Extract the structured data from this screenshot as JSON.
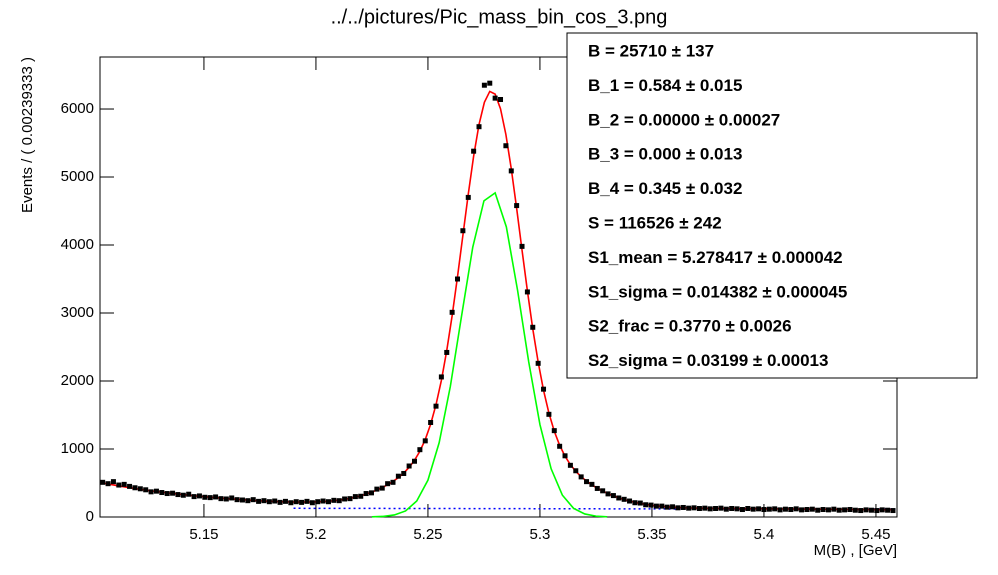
{
  "chart_data": {
    "type": "line",
    "title": "../../pictures/Pic_mass_bin_cos_3.png",
    "xlabel": "M(B) , [GeV]",
    "ylabel": "Events / ( 0.00239333 )",
    "xlim": [
      5.1036,
      5.4594
    ],
    "ylim": [
      0,
      6765
    ],
    "xticks": [
      5.15,
      5.2,
      5.25,
      5.3,
      5.35,
      5.4,
      5.45
    ],
    "yticks": [
      0,
      1000,
      2000,
      3000,
      4000,
      5000,
      6000
    ],
    "x": [
      5.1048,
      5.1072,
      5.1096,
      5.112,
      5.1144,
      5.1168,
      5.1192,
      5.1216,
      5.124,
      5.1264,
      5.1288,
      5.1312,
      5.1336,
      5.136,
      5.1384,
      5.1408,
      5.1432,
      5.1456,
      5.148,
      5.1504,
      5.1528,
      5.1552,
      5.1576,
      5.16,
      5.1624,
      5.1648,
      5.1672,
      5.1696,
      5.172,
      5.1744,
      5.1768,
      5.1792,
      5.1816,
      5.184,
      5.1864,
      5.1888,
      5.1912,
      5.1936,
      5.196,
      5.1984,
      5.2008,
      5.2032,
      5.2056,
      5.208,
      5.2104,
      5.2128,
      5.2152,
      5.2176,
      5.22,
      5.2224,
      5.2248,
      5.2272,
      5.2296,
      5.232,
      5.2344,
      5.2368,
      5.2392,
      5.2416,
      5.244,
      5.2464,
      5.2488,
      5.2512,
      5.2536,
      5.256,
      5.2584,
      5.2608,
      5.2632,
      5.2656,
      5.268,
      5.2704,
      5.2728,
      5.2752,
      5.2776,
      5.28,
      5.2824,
      5.2848,
      5.2872,
      5.2896,
      5.292,
      5.2944,
      5.2968,
      5.2992,
      5.3016,
      5.304,
      5.3064,
      5.3088,
      5.3112,
      5.3136,
      5.316,
      5.3184,
      5.3208,
      5.3232,
      5.3256,
      5.328,
      5.3304,
      5.3328,
      5.3352,
      5.3376,
      5.34,
      5.3424,
      5.3448,
      5.3472,
      5.3496,
      5.352,
      5.3544,
      5.3568,
      5.3592,
      5.3616,
      5.364,
      5.3664,
      5.3688,
      5.3712,
      5.3736,
      5.376,
      5.3784,
      5.3808,
      5.3832,
      5.3856,
      5.388,
      5.3904,
      5.3928,
      5.3952,
      5.3976,
      5.4,
      5.4024,
      5.4048,
      5.4072,
      5.4096,
      5.412,
      5.4144,
      5.4168,
      5.4192,
      5.4216,
      5.424,
      5.4264,
      5.4288,
      5.4312,
      5.4336,
      5.436,
      5.4384,
      5.4408,
      5.4432,
      5.4456,
      5.448,
      5.4504,
      5.4528,
      5.4552,
      5.4576
    ],
    "series": [
      {
        "color": "#0000ff",
        "dash": "dotted",
        "x": [
          5.19,
          5.25,
          5.3,
          5.35,
          5.4,
          5.459
        ],
        "values": [
          128,
          125,
          122,
          119,
          116,
          113
        ]
      },
      {
        "color": "#00ff00",
        "x": [
          5.225,
          5.23,
          5.235,
          5.24,
          5.245,
          5.25,
          5.255,
          5.26,
          5.265,
          5.27,
          5.275,
          5.28,
          5.285,
          5.29,
          5.295,
          5.3,
          5.305,
          5.31,
          5.315,
          5.32,
          5.325,
          5.33
        ],
        "values": [
          2,
          9,
          30,
          89,
          235,
          542,
          1092,
          1921,
          2955,
          3966,
          4650,
          4767,
          4267,
          3336,
          2279,
          1360,
          709,
          322,
          128,
          45,
          13,
          3
        ]
      },
      {
        "color": "#ff0000",
        "values": [
          500,
          485,
          471,
          457,
          444,
          431,
          419,
          407,
          396,
          385,
          375,
          365,
          355,
          346,
          337,
          329,
          320,
          312,
          305,
          298,
          291,
          284,
          278,
          271,
          265,
          260,
          254,
          249,
          244,
          239,
          235,
          232,
          228,
          225,
          223,
          221,
          219,
          219,
          219,
          220,
          223,
          227,
          232,
          239,
          249,
          260,
          275,
          292,
          312,
          336,
          364,
          397,
          433,
          475,
          523,
          579,
          647,
          730,
          834,
          967,
          1139,
          1364,
          1651,
          2009,
          2448,
          2960,
          3534,
          4141,
          4746,
          5307,
          5772,
          6099,
          6259,
          6219,
          6003,
          5625,
          5122,
          4540,
          3926,
          3325,
          2767,
          2279,
          1865,
          1528,
          1261,
          1055,
          893,
          770,
          671,
          593,
          527,
          472,
          423,
          381,
          343,
          310,
          281,
          256,
          234,
          215,
          199,
          186,
          173,
          164,
          156,
          150,
          144,
          140,
          136,
          133,
          131,
          129,
          127,
          126,
          126,
          125,
          125,
          124,
          124,
          123,
          123,
          122,
          122,
          121,
          120,
          120,
          119,
          119,
          118,
          117,
          117,
          116,
          116,
          115,
          114,
          114,
          113,
          113,
          112,
          111,
          111,
          110,
          110,
          109,
          108,
          108,
          107,
          107
        ]
      },
      {
        "color": "#000000",
        "marker": "square",
        "values": [
          510,
          490,
          520,
          470,
          480,
          450,
          430,
          415,
          400,
          370,
          380,
          360,
          345,
          350,
          330,
          320,
          335,
          300,
          310,
          290,
          285,
          295,
          270,
          265,
          280,
          255,
          250,
          240,
          255,
          230,
          240,
          225,
          235,
          215,
          230,
          210,
          225,
          215,
          230,
          210,
          225,
          235,
          225,
          245,
          240,
          265,
          270,
          300,
          305,
          345,
          355,
          410,
          425,
          490,
          510,
          600,
          640,
          750,
          820,
          990,
          1120,
          1390,
          1630,
          2060,
          2420,
          3010,
          3500,
          4210,
          4700,
          5380,
          5740,
          6350,
          6380,
          6160,
          6140,
          5460,
          5090,
          4580,
          3980,
          3310,
          2790,
          2260,
          1880,
          1510,
          1270,
          1040,
          900,
          760,
          680,
          590,
          520,
          480,
          420,
          385,
          340,
          315,
          280,
          260,
          235,
          210,
          205,
          180,
          175,
          160,
          160,
          145,
          150,
          135,
          140,
          130,
          135,
          125,
          130,
          120,
          125,
          130,
          115,
          125,
          120,
          110,
          125,
          115,
          120,
          110,
          115,
          120,
          105,
          115,
          110,
          120,
          105,
          110,
          115,
          100,
          110,
          105,
          115,
          100,
          105,
          110,
          100,
          95,
          105,
          100,
          95,
          105,
          100,
          95
        ]
      }
    ],
    "stats_box": [
      "B =  25710 ± 137",
      "B_1 =  0.584 ± 0.015",
      "B_2 =  0.00000 ± 0.00027",
      "B_3 =  0.000 ± 0.013",
      "B_4 =  0.345 ± 0.032",
      "S =  116526 ± 242",
      "S1_mean =  5.278417 ± 0.000042",
      "S1_sigma =  0.014382 ± 0.000045",
      "S2_frac =  0.3770 ± 0.0026",
      "S2_sigma =  0.03199 ± 0.00013"
    ]
  }
}
